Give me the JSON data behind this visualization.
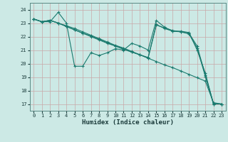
{
  "xlabel": "Humidex (Indice chaleur)",
  "xlim": [
    -0.5,
    23.5
  ],
  "ylim": [
    16.5,
    24.5
  ],
  "yticks": [
    17,
    18,
    19,
    20,
    21,
    22,
    23,
    24
  ],
  "xticks": [
    0,
    1,
    2,
    3,
    4,
    5,
    6,
    7,
    8,
    9,
    10,
    11,
    12,
    13,
    14,
    15,
    16,
    17,
    18,
    19,
    20,
    21,
    22,
    23
  ],
  "line_color": "#1a7a6e",
  "bg_color": "#cce9e5",
  "grid_color": "#d9b0b0",
  "series": [
    [
      23.3,
      23.1,
      23.1,
      23.8,
      23.0,
      19.8,
      19.8,
      20.8,
      20.6,
      20.8,
      21.1,
      21.0,
      21.5,
      21.3,
      21.0,
      23.2,
      22.7,
      22.4,
      22.4,
      22.3,
      21.0,
      19.3,
      17.0,
      17.0
    ],
    [
      23.3,
      23.1,
      23.2,
      23.0,
      22.8,
      22.6,
      22.35,
      22.1,
      21.85,
      21.6,
      21.35,
      21.15,
      20.9,
      20.65,
      20.4,
      20.15,
      19.9,
      19.7,
      19.45,
      19.2,
      18.95,
      18.7,
      17.1,
      17.0
    ],
    [
      23.3,
      23.1,
      23.2,
      23.0,
      22.75,
      22.5,
      22.25,
      22.05,
      21.8,
      21.55,
      21.3,
      21.1,
      20.85,
      20.65,
      20.4,
      22.85,
      22.65,
      22.45,
      22.35,
      22.25,
      21.3,
      19.15,
      17.05,
      17.0
    ],
    [
      23.3,
      23.1,
      23.2,
      23.0,
      22.75,
      22.5,
      22.25,
      22.0,
      21.75,
      21.5,
      21.3,
      21.05,
      20.85,
      20.65,
      20.45,
      22.9,
      22.6,
      22.4,
      22.35,
      22.2,
      21.15,
      19.05,
      17.0,
      17.0
    ]
  ]
}
